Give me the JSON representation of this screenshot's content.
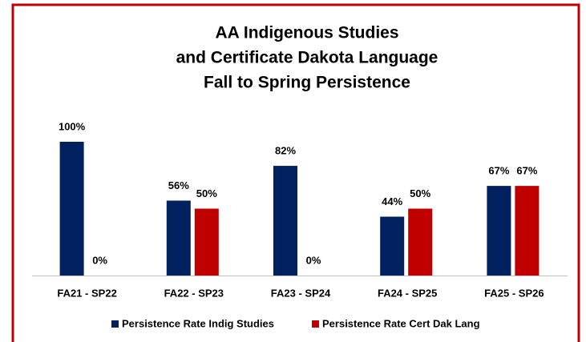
{
  "chart_data": {
    "type": "bar",
    "title": [
      "AA Indigenous Studies",
      "and Certificate Dakota Language",
      "Fall to Spring Persistence"
    ],
    "categories": [
      "FA21 - SP22",
      "FA22 - SP23",
      "FA23 - SP24",
      "FA24 - SP25",
      "FA25 - SP26"
    ],
    "series": [
      {
        "name": "Persistence Rate Indig Studies",
        "color": "#002060",
        "values": [
          100,
          56,
          82,
          44,
          67
        ],
        "value_labels": [
          "100%",
          "56%",
          "82%",
          "44%",
          "67%"
        ]
      },
      {
        "name": "Persistence Rate Cert Dak Lang",
        "color": "#c00000",
        "values": [
          0,
          50,
          0,
          50,
          67
        ],
        "value_labels": [
          "0%",
          "50%",
          "0%",
          "50%",
          "67%"
        ]
      }
    ],
    "border_color": "#c00000"
  }
}
